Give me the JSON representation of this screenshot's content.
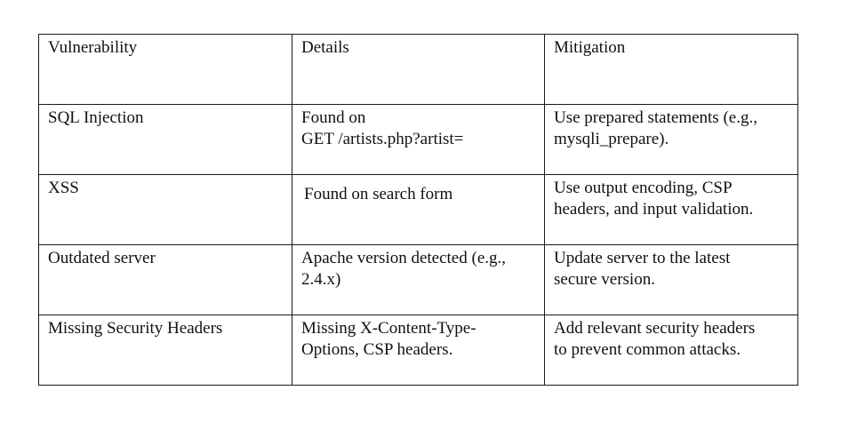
{
  "table": {
    "headers": [
      "Vulnerability",
      "Details",
      "Mitigation"
    ],
    "rows": [
      {
        "vulnerability": "SQL Injection",
        "details": "Found on\nGET /artists.php?artist=",
        "mitigation": "Use prepared statements (e.g.,\nmysqli_prepare)."
      },
      {
        "vulnerability": "XSS",
        "details": "Found on search form",
        "mitigation": "Use output encoding, CSP\nheaders, and input validation."
      },
      {
        "vulnerability": "Outdated server",
        "details": "Apache version detected (e.g.,\n2.4.x)",
        "mitigation": "Update server to the latest\nsecure version."
      },
      {
        "vulnerability": "Missing Security Headers",
        "details": "Missing X-Content-Type-\nOptions, CSP headers.",
        "mitigation": "Add relevant security headers\nto prevent common attacks."
      }
    ]
  }
}
